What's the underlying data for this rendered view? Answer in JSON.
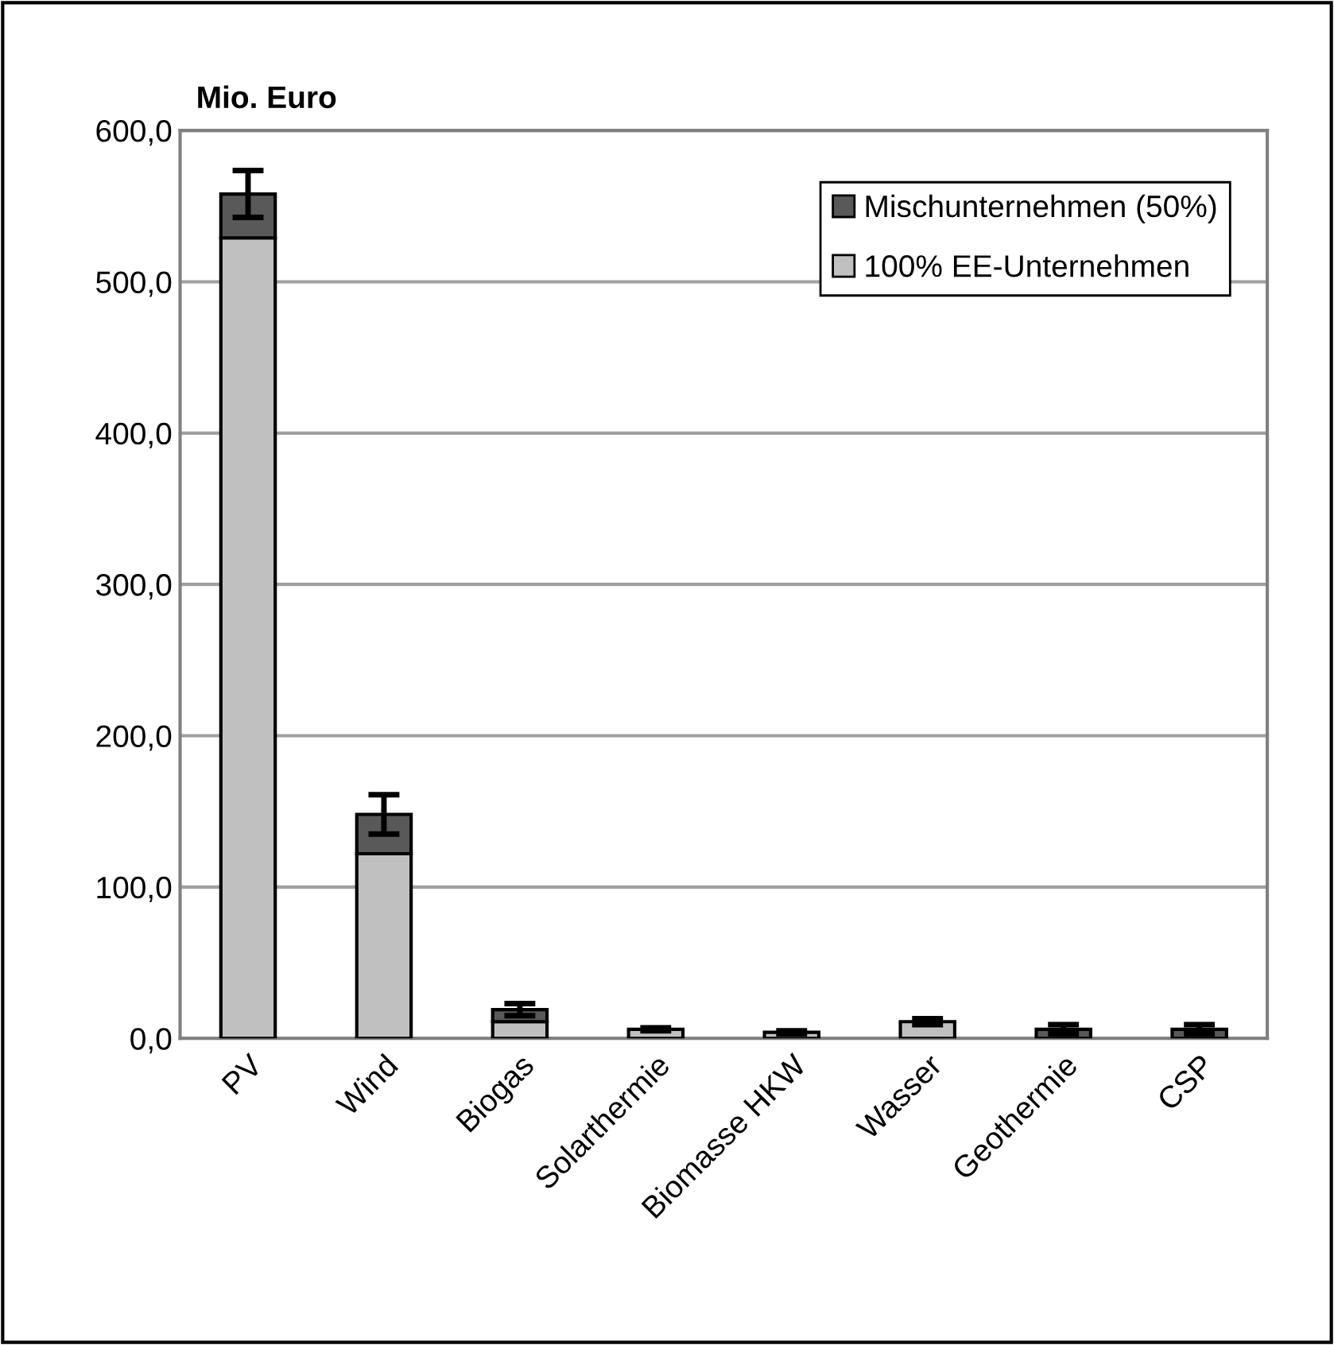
{
  "chart_data": {
    "type": "bar",
    "stacked": true,
    "ylabel": "Mio. Euro",
    "categories": [
      "PV",
      "Wind",
      "Biogas",
      "Solarthermie",
      "Biomasse HKW",
      "Wasser",
      "Geothermie",
      "CSP"
    ],
    "series": [
      {
        "name": "100% EE-Unternehmen",
        "color": "#c0c0c0",
        "values": [
          529,
          122,
          11,
          6,
          4,
          11,
          null,
          null
        ],
        "errors": [
          null,
          null,
          null,
          1,
          1,
          2,
          null,
          null
        ]
      },
      {
        "name": "Mischunternehmen (50%)",
        "color": "#595959",
        "values": [
          29,
          26,
          8,
          null,
          null,
          null,
          6,
          6
        ],
        "errors": [
          15.5,
          13,
          4,
          null,
          null,
          null,
          3,
          3
        ]
      }
    ],
    "ylim": [
      0,
      600
    ],
    "yticks": [
      {
        "value": 0,
        "label": "0,0"
      },
      {
        "value": 100,
        "label": "100,0"
      },
      {
        "value": 200,
        "label": "200,0"
      },
      {
        "value": 300,
        "label": "300,0"
      },
      {
        "value": 400,
        "label": "400,0"
      },
      {
        "value": 500,
        "label": "500,0"
      },
      {
        "value": 600,
        "label": "600,0"
      }
    ],
    "grid": "y",
    "legend": "top right"
  }
}
